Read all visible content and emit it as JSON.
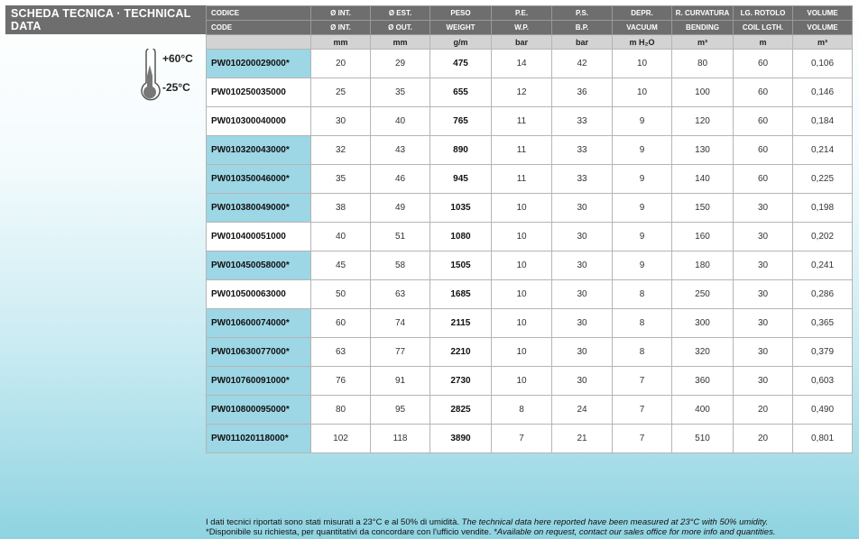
{
  "title": "SCHEDA TECNICA · TECHNICAL DATA",
  "temperature": {
    "max": "+60°C",
    "min": "-25°C"
  },
  "colors": {
    "header": "#6e6e6e",
    "units_row": "#d3d3d3",
    "available_highlight": "#9dd6e4"
  },
  "headers_it": [
    "CODICE",
    "Ø INT.",
    "Ø EST.",
    "PESO",
    "P.E.",
    "P.S.",
    "DEPR.",
    "R. CURVATURA",
    "LG. ROTOLO",
    "VOLUME"
  ],
  "headers_en": [
    "CODE",
    "Ø INT.",
    "Ø OUT.",
    "WEIGHT",
    "W.P.",
    "B.P.",
    "VACUUM",
    "BENDING",
    "COIL LGTH.",
    "VOLUME"
  ],
  "units": [
    "",
    "mm",
    "mm",
    "g/m",
    "bar",
    "bar",
    "m H₂O",
    "m³",
    "m",
    "m³"
  ],
  "rows": [
    {
      "code": "PW010200029000*",
      "avail": true,
      "v": [
        "20",
        "29",
        "475",
        "14",
        "42",
        "10",
        "80",
        "60",
        "0,106"
      ]
    },
    {
      "code": "PW010250035000",
      "avail": false,
      "v": [
        "25",
        "35",
        "655",
        "12",
        "36",
        "10",
        "100",
        "60",
        "0,146"
      ]
    },
    {
      "code": "PW010300040000",
      "avail": false,
      "v": [
        "30",
        "40",
        "765",
        "11",
        "33",
        "9",
        "120",
        "60",
        "0,184"
      ]
    },
    {
      "code": "PW010320043000*",
      "avail": true,
      "v": [
        "32",
        "43",
        "890",
        "11",
        "33",
        "9",
        "130",
        "60",
        "0,214"
      ]
    },
    {
      "code": "PW010350046000*",
      "avail": true,
      "v": [
        "35",
        "46",
        "945",
        "11",
        "33",
        "9",
        "140",
        "60",
        "0,225"
      ]
    },
    {
      "code": "PW010380049000*",
      "avail": true,
      "v": [
        "38",
        "49",
        "1035",
        "10",
        "30",
        "9",
        "150",
        "30",
        "0,198"
      ]
    },
    {
      "code": "PW010400051000",
      "avail": false,
      "v": [
        "40",
        "51",
        "1080",
        "10",
        "30",
        "9",
        "160",
        "30",
        "0,202"
      ]
    },
    {
      "code": "PW010450058000*",
      "avail": true,
      "v": [
        "45",
        "58",
        "1505",
        "10",
        "30",
        "9",
        "180",
        "30",
        "0,241"
      ]
    },
    {
      "code": "PW010500063000",
      "avail": false,
      "v": [
        "50",
        "63",
        "1685",
        "10",
        "30",
        "8",
        "250",
        "30",
        "0,286"
      ]
    },
    {
      "code": "PW010600074000*",
      "avail": true,
      "v": [
        "60",
        "74",
        "2115",
        "10",
        "30",
        "8",
        "300",
        "30",
        "0,365"
      ]
    },
    {
      "code": "PW010630077000*",
      "avail": true,
      "v": [
        "63",
        "77",
        "2210",
        "10",
        "30",
        "8",
        "320",
        "30",
        "0,379"
      ]
    },
    {
      "code": "PW010760091000*",
      "avail": true,
      "v": [
        "76",
        "91",
        "2730",
        "10",
        "30",
        "7",
        "360",
        "30",
        "0,603"
      ]
    },
    {
      "code": "PW010800095000*",
      "avail": true,
      "v": [
        "80",
        "95",
        "2825",
        "8",
        "24",
        "7",
        "400",
        "20",
        "0,490"
      ]
    },
    {
      "code": "PW011020118000*",
      "avail": true,
      "v": [
        "102",
        "118",
        "3890",
        "7",
        "21",
        "7",
        "510",
        "20",
        "0,801"
      ]
    }
  ],
  "notes": {
    "line1_it": "I dati tecnici riportati sono stati misurati a 23°C e al 50% di umidità.",
    "line1_en": "The technical data here reported have been measured at 23°C with 50% umidity.",
    "line2_it": "*Disponibile su richiesta, per quantitativi da concordare con l'ufficio vendite.",
    "line2_en": "*Available on request, contact our sales office for more info and quantities."
  }
}
